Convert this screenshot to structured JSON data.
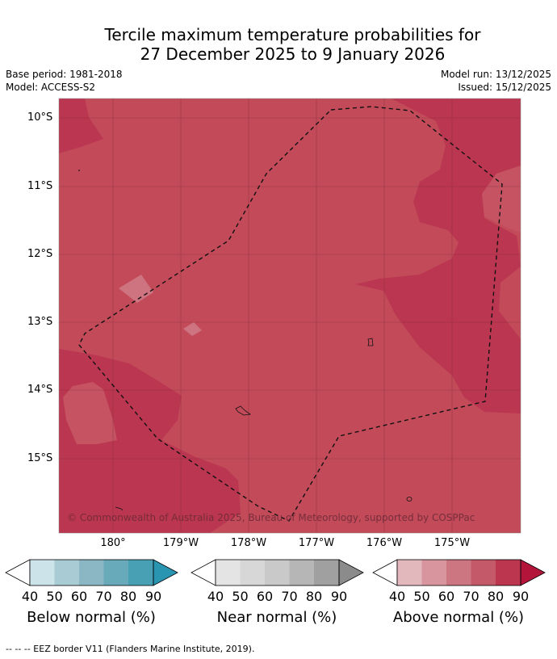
{
  "title_line1": "Tercile maximum temperature probabilities for",
  "title_line2": "27 December 2025 to 9 January 2026",
  "base_period": "Base period: 1981-2018",
  "model": "Model: ACCESS-S2",
  "model_run": "Model run: 13/12/2025",
  "issued": "Issued: 15/12/2025",
  "lat_labels": [
    "10°S",
    "11°S",
    "12°S",
    "13°S",
    "14°S",
    "15°S"
  ],
  "lon_labels": [
    "180°",
    "179°W",
    "178°W",
    "177°W",
    "176°W",
    "175°W"
  ],
  "copyright": "© Commonwealth of Australia 2025, Bureau of Meteorology, supported by COSPPac",
  "colorbars": [
    {
      "label": "Below normal (%)",
      "ticks": [
        "40",
        "50",
        "60",
        "70",
        "80",
        "90"
      ],
      "colors": [
        "#cde3ea",
        "#a9cbd3",
        "#8bb7c5",
        "#68a9ba",
        "#47a0b4",
        "#2a95b0"
      ]
    },
    {
      "label": "Near normal (%)",
      "ticks": [
        "40",
        "50",
        "60",
        "70",
        "80",
        "90"
      ],
      "colors": [
        "#e4e4e4",
        "#d7d7d7",
        "#c9c9c9",
        "#b6b6b6",
        "#a0a0a0",
        "#8b8b8b"
      ]
    },
    {
      "label": "Above normal (%)",
      "ticks": [
        "40",
        "50",
        "60",
        "70",
        "80",
        "90"
      ],
      "colors": [
        "#e3b8bd",
        "#d8959e",
        "#cc7682",
        "#c4596a",
        "#bc3650",
        "#b3143a"
      ]
    }
  ],
  "footer": "--  --  -- EEZ border V11 (Flanders Marine Institute, 2019)."
}
